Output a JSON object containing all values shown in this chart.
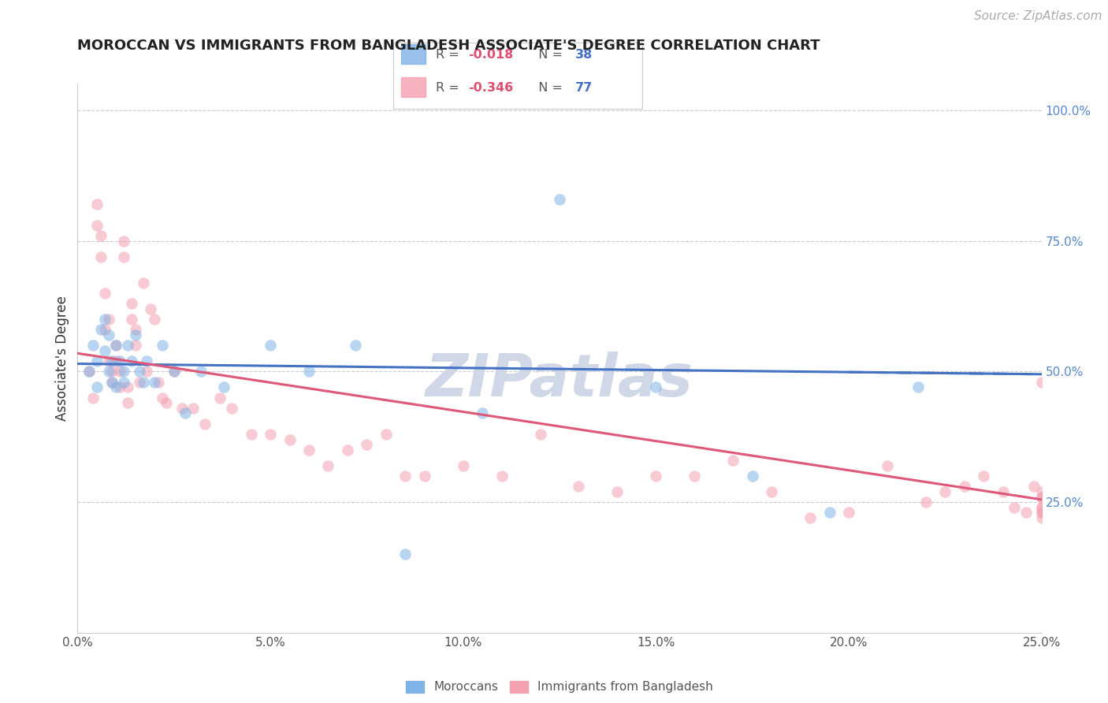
{
  "title": "MOROCCAN VS IMMIGRANTS FROM BANGLADESH ASSOCIATE'S DEGREE CORRELATION CHART",
  "source": "Source: ZipAtlas.com",
  "ylabel": "Associate's Degree",
  "x_min": 0.0,
  "x_max": 0.25,
  "y_min": 0.0,
  "y_max": 1.0,
  "x_tick_labels": [
    "0.0%",
    "5.0%",
    "10.0%",
    "15.0%",
    "20.0%",
    "25.0%"
  ],
  "x_tick_values": [
    0.0,
    0.05,
    0.1,
    0.15,
    0.2,
    0.25
  ],
  "y_tick_labels": [
    "100.0%",
    "75.0%",
    "50.0%",
    "25.0%"
  ],
  "y_tick_values": [
    1.0,
    0.75,
    0.5,
    0.25
  ],
  "gridline_color": "#cccccc",
  "background_color": "#ffffff",
  "watermark_text": "ZIPatlas",
  "watermark_color": "#d0d8e8",
  "moroccan_color": "#7fb3e8",
  "bangladesh_color": "#f4a0b0",
  "moroccan_line_color": "#4472c4",
  "bangladesh_line_color": "#e05878",
  "legend_label1": "Moroccans",
  "legend_label2": "Immigrants from Bangladesh",
  "R_color": "#e05070",
  "N_color": "#4472c4",
  "moroccan_R": "-0.018",
  "moroccan_N": "38",
  "bangladesh_R": "-0.346",
  "bangladesh_N": "77",
  "moroccan_x": [
    0.003,
    0.004,
    0.005,
    0.005,
    0.006,
    0.007,
    0.007,
    0.008,
    0.008,
    0.009,
    0.009,
    0.01,
    0.01,
    0.011,
    0.012,
    0.012,
    0.013,
    0.014,
    0.015,
    0.016,
    0.017,
    0.018,
    0.02,
    0.022,
    0.025,
    0.028,
    0.032,
    0.038,
    0.05,
    0.06,
    0.072,
    0.085,
    0.105,
    0.125,
    0.15,
    0.175,
    0.195,
    0.218
  ],
  "moroccan_y": [
    0.5,
    0.55,
    0.52,
    0.47,
    0.58,
    0.6,
    0.54,
    0.57,
    0.5,
    0.48,
    0.52,
    0.55,
    0.47,
    0.52,
    0.5,
    0.48,
    0.55,
    0.52,
    0.57,
    0.5,
    0.48,
    0.52,
    0.48,
    0.55,
    0.5,
    0.42,
    0.5,
    0.47,
    0.55,
    0.5,
    0.55,
    0.15,
    0.42,
    0.83,
    0.47,
    0.3,
    0.23,
    0.47
  ],
  "bangladesh_x": [
    0.003,
    0.004,
    0.005,
    0.005,
    0.006,
    0.006,
    0.007,
    0.007,
    0.008,
    0.008,
    0.009,
    0.009,
    0.01,
    0.01,
    0.011,
    0.011,
    0.012,
    0.012,
    0.013,
    0.013,
    0.014,
    0.014,
    0.015,
    0.015,
    0.016,
    0.017,
    0.018,
    0.019,
    0.02,
    0.021,
    0.022,
    0.023,
    0.025,
    0.027,
    0.03,
    0.033,
    0.037,
    0.04,
    0.045,
    0.05,
    0.055,
    0.06,
    0.065,
    0.07,
    0.075,
    0.08,
    0.085,
    0.09,
    0.1,
    0.11,
    0.12,
    0.13,
    0.14,
    0.15,
    0.16,
    0.17,
    0.18,
    0.19,
    0.2,
    0.21,
    0.22,
    0.225,
    0.23,
    0.235,
    0.24,
    0.243,
    0.246,
    0.248,
    0.25,
    0.25,
    0.25,
    0.25,
    0.25,
    0.25,
    0.25,
    0.25,
    0.25
  ],
  "bangladesh_y": [
    0.5,
    0.45,
    0.82,
    0.78,
    0.76,
    0.72,
    0.65,
    0.58,
    0.6,
    0.52,
    0.5,
    0.48,
    0.55,
    0.52,
    0.5,
    0.47,
    0.75,
    0.72,
    0.47,
    0.44,
    0.63,
    0.6,
    0.58,
    0.55,
    0.48,
    0.67,
    0.5,
    0.62,
    0.6,
    0.48,
    0.45,
    0.44,
    0.5,
    0.43,
    0.43,
    0.4,
    0.45,
    0.43,
    0.38,
    0.38,
    0.37,
    0.35,
    0.32,
    0.35,
    0.36,
    0.38,
    0.3,
    0.3,
    0.32,
    0.3,
    0.38,
    0.28,
    0.27,
    0.3,
    0.3,
    0.33,
    0.27,
    0.22,
    0.23,
    0.32,
    0.25,
    0.27,
    0.28,
    0.3,
    0.27,
    0.24,
    0.23,
    0.28,
    0.23,
    0.27,
    0.26,
    0.24,
    0.23,
    0.26,
    0.24,
    0.22,
    0.48
  ],
  "title_fontsize": 13,
  "axis_label_fontsize": 12,
  "tick_fontsize": 11,
  "source_fontsize": 11,
  "dot_size": 110,
  "dot_alpha": 0.55,
  "line_width": 2.2
}
